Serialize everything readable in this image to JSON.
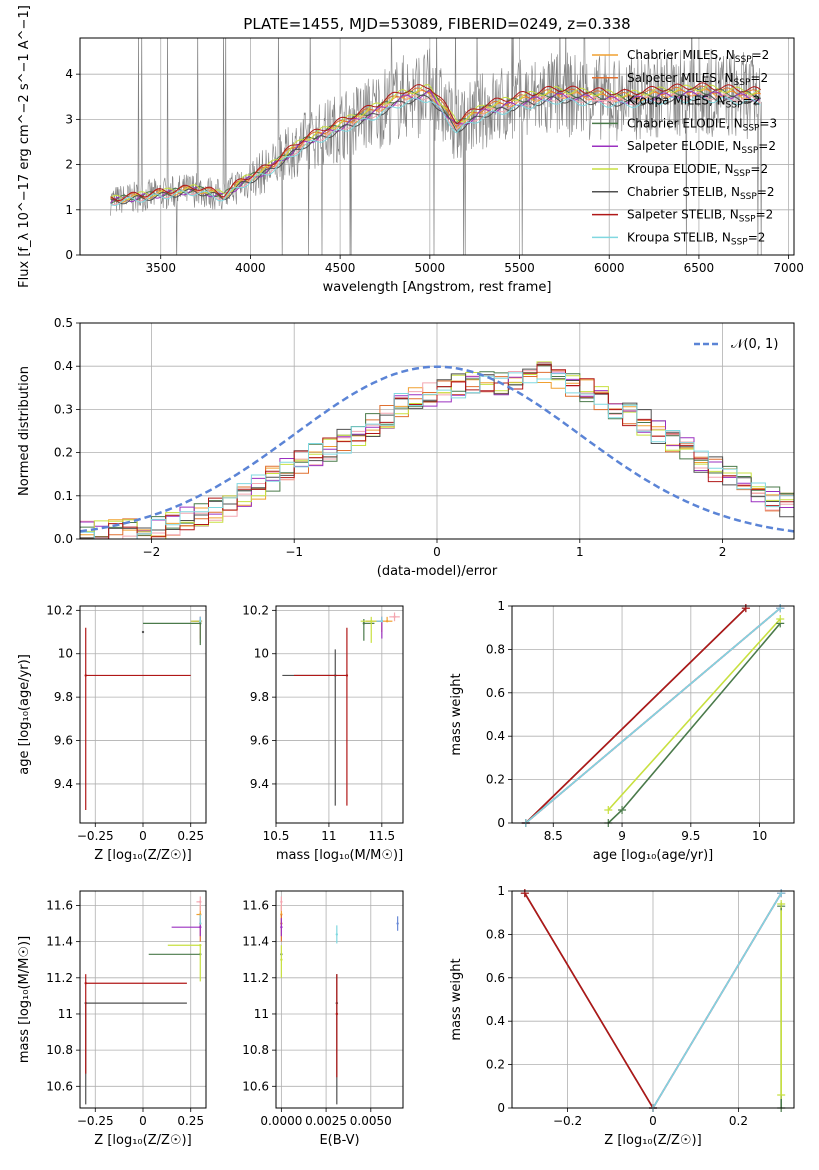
{
  "figure_title": "PLATE=1455, MJD=53089, FIBERID=0249, z=0.338",
  "colors": {
    "chabrier_miles": "#f0a030",
    "salpeter_miles": "#e07030",
    "kroupa_miles": "#f4a6b0",
    "chabrier_elodie": "#4a7a4a",
    "salpeter_elodie": "#9b30c0",
    "kroupa_elodie": "#c8e040",
    "chabrier_stelib": "#505050",
    "salpeter_stelib": "#b01818",
    "kroupa_stelib": "#80d8e0",
    "data": "#808080",
    "normal": "#5b84d6"
  },
  "legend": {
    "spectrum": [
      {
        "model": "Chabrier MILES",
        "n": "2",
        "color": "#f0a030"
      },
      {
        "model": "Salpeter MILES",
        "n": "2",
        "color": "#e07030"
      },
      {
        "model": "Kroupa MILES",
        "n": "2",
        "color": "#f4a6b0"
      },
      {
        "model": "Chabrier ELODIE",
        "n": "3",
        "color": "#4a7a4a"
      },
      {
        "model": "Salpeter ELODIE",
        "n": "2",
        "color": "#9b30c0"
      },
      {
        "model": "Kroupa ELODIE",
        "n": "2",
        "color": "#c8e040"
      },
      {
        "model": "Chabrier STELIB",
        "n": "2",
        "color": "#505050"
      },
      {
        "model": "Salpeter STELIB",
        "n": "2",
        "color": "#b01818"
      },
      {
        "model": "Kroupa STELIB",
        "n": "2",
        "color": "#80d8e0"
      }
    ],
    "residual": "𝒩(0, 1)"
  },
  "chart_data": [
    {
      "id": "spectrum",
      "type": "line",
      "xlabel": "wavelength [Angstrom, rest frame]",
      "ylabel": "Flux [f_λ 10^−17 erg cm^−2 s^−1 A^−1]",
      "xlim": [
        3050,
        7030
      ],
      "ylim": [
        0,
        4.8
      ],
      "grid": true,
      "xticks": [
        3500,
        4000,
        4500,
        5000,
        5500,
        6000,
        6500,
        7000
      ],
      "yticks": [
        0,
        1,
        2,
        3,
        4
      ],
      "data_range": [
        3220,
        6850
      ],
      "model_continuum": [
        [
          3220,
          1.2
        ],
        [
          3500,
          1.35
        ],
        [
          3700,
          1.45
        ],
        [
          3850,
          1.3
        ],
        [
          3950,
          1.6
        ],
        [
          4100,
          1.9
        ],
        [
          4300,
          2.5
        ],
        [
          4500,
          2.85
        ],
        [
          4700,
          3.2
        ],
        [
          4850,
          3.5
        ],
        [
          5000,
          3.6
        ],
        [
          5150,
          2.85
        ],
        [
          5300,
          3.2
        ],
        [
          5500,
          3.4
        ],
        [
          5700,
          3.55
        ],
        [
          5900,
          3.5
        ],
        [
          6100,
          3.45
        ],
        [
          6300,
          3.55
        ],
        [
          6500,
          3.6
        ],
        [
          6850,
          3.5
        ]
      ],
      "model_scale": [
        1.0,
        1.02,
        0.98,
        1.01,
        0.99,
        1.03,
        0.97,
        1.04,
        0.96
      ]
    },
    {
      "id": "residual",
      "type": "histogram",
      "xlabel": "(data-model)/error",
      "ylabel": "Normed distribution",
      "xlim": [
        -2.5,
        2.5
      ],
      "ylim": [
        0,
        0.5
      ],
      "grid": true,
      "xticks": [
        -2,
        -1,
        0,
        1,
        2
      ],
      "yticks": [
        0.0,
        0.1,
        0.2,
        0.3,
        0.4,
        0.5
      ],
      "bin_width": 0.1,
      "histogram_envelope": [
        [
          -2.5,
          0.01
        ],
        [
          -2.0,
          0.02
        ],
        [
          -1.5,
          0.07
        ],
        [
          -1.0,
          0.17
        ],
        [
          -0.5,
          0.25
        ],
        [
          -0.2,
          0.32
        ],
        [
          0.0,
          0.34
        ],
        [
          0.3,
          0.37
        ],
        [
          0.5,
          0.36
        ],
        [
          0.7,
          0.4
        ],
        [
          1.0,
          0.35
        ],
        [
          1.3,
          0.3
        ],
        [
          1.6,
          0.24
        ],
        [
          2.0,
          0.15
        ],
        [
          2.5,
          0.07
        ]
      ],
      "normal_curve": {
        "mean": 0,
        "sigma": 1
      }
    },
    {
      "id": "age_vs_Z",
      "type": "scatter",
      "xlabel": "Z [log₁₀(Z/Z☉)]",
      "ylabel": "age  [log₁₀(age/yr)]",
      "xlim": [
        -0.33,
        0.33
      ],
      "ylim": [
        9.22,
        10.22
      ],
      "xticks": [
        -0.25,
        0.0,
        0.25
      ],
      "yticks": [
        9.4,
        9.6,
        9.8,
        10.0,
        10.2
      ],
      "points": [
        {
          "x": 0.3,
          "y": 10.15,
          "xerr": [
            0.03,
            0.01
          ],
          "yerr": [
            0.0,
            0.02
          ],
          "color": "#f0a030"
        },
        {
          "x": 0.3,
          "y": 10.15,
          "xerr": [
            0.04,
            0.0
          ],
          "yerr": [
            0.08,
            0.02
          ],
          "color": "#e07030"
        },
        {
          "x": 0.3,
          "y": 10.15,
          "xerr": [
            0.0,
            0.0
          ],
          "yerr": [
            0.1,
            0.02
          ],
          "color": "#f4a6b0"
        },
        {
          "x": 0.3,
          "y": 10.14,
          "xerr": [
            0.3,
            0.0
          ],
          "yerr": [
            0.1,
            0.02
          ],
          "color": "#4a7a4a"
        },
        {
          "x": 0.3,
          "y": 10.15,
          "xerr": [
            0.05,
            0.0
          ],
          "yerr": [
            0.0,
            0.02
          ],
          "color": "#9b30c0"
        },
        {
          "x": 0.3,
          "y": 10.15,
          "xerr": [
            0.05,
            0.0
          ],
          "yerr": [
            0.0,
            0.0
          ],
          "color": "#c8e040"
        },
        {
          "x": 0.0,
          "y": 10.1,
          "xerr": [
            0.0,
            0.0
          ],
          "yerr": [
            0.0,
            0.0
          ],
          "color": "#505050"
        },
        {
          "x": -0.3,
          "y": 9.9,
          "xerr": [
            0.0,
            0.55
          ],
          "yerr": [
            0.62,
            0.22
          ],
          "color": "#b01818"
        },
        {
          "x": 0.3,
          "y": 10.15,
          "xerr": [
            0.0,
            0.0
          ],
          "yerr": [
            0.0,
            0.02
          ],
          "color": "#80d8e0"
        }
      ]
    },
    {
      "id": "age_vs_mass",
      "type": "scatter",
      "xlabel": "mass [log₁₀(M/M☉)]",
      "ylabel": "",
      "xlim": [
        10.5,
        11.7
      ],
      "ylim": [
        9.22,
        10.22
      ],
      "xticks": [
        10.5,
        11.0,
        11.5
      ],
      "yticks": [
        9.4,
        9.6,
        9.8,
        10.0,
        10.2
      ],
      "points": [
        {
          "x": 11.55,
          "y": 10.15,
          "xerr": [
            0.05,
            0.05
          ],
          "yerr": [
            0.0,
            0.02
          ],
          "color": "#f0a030"
        },
        {
          "x": 11.5,
          "y": 10.15,
          "xerr": [
            0.15,
            0.0
          ],
          "yerr": [
            0.05,
            0.02
          ],
          "color": "#e07030"
        },
        {
          "x": 11.62,
          "y": 10.17,
          "xerr": [
            0.05,
            0.05
          ],
          "yerr": [
            0.02,
            0.02
          ],
          "color": "#f4a6b0"
        },
        {
          "x": 11.33,
          "y": 10.14,
          "xerr": [
            0.0,
            0.1
          ],
          "yerr": [
            0.08,
            0.02
          ],
          "color": "#4a7a4a"
        },
        {
          "x": 11.5,
          "y": 10.15,
          "xerr": [
            0.05,
            0.0
          ],
          "yerr": [
            0.08,
            0.02
          ],
          "color": "#9b30c0"
        },
        {
          "x": 11.4,
          "y": 10.15,
          "xerr": [
            0.1,
            0.05
          ],
          "yerr": [
            0.1,
            0.02
          ],
          "color": "#c8e040"
        },
        {
          "x": 11.06,
          "y": 9.9,
          "xerr": [
            0.5,
            0.0
          ],
          "yerr": [
            0.6,
            0.12
          ],
          "color": "#505050"
        },
        {
          "x": 11.17,
          "y": 9.9,
          "xerr": [
            0.5,
            0.0
          ],
          "yerr": [
            0.6,
            0.22
          ],
          "color": "#b01818"
        },
        {
          "x": 11.5,
          "y": 10.15,
          "xerr": [
            0.05,
            0.0
          ],
          "yerr": [
            0.0,
            0.02
          ],
          "color": "#80d8e0"
        }
      ]
    },
    {
      "id": "mass_weight_vs_age",
      "type": "line",
      "xlabel": "age  [log₁₀(age/yr)]",
      "ylabel": "mass weight",
      "xlim": [
        8.2,
        10.25
      ],
      "ylim": [
        0,
        1.0
      ],
      "xticks": [
        8.5,
        9.0,
        9.5,
        10.0
      ],
      "yticks": [
        0.0,
        0.2,
        0.4,
        0.6,
        0.8,
        1.0
      ],
      "series": [
        {
          "color": "#f0a030",
          "x": [
            8.3,
            10.15
          ],
          "y": [
            0.0,
            0.99
          ]
        },
        {
          "color": "#e07030",
          "x": [
            8.3,
            10.15
          ],
          "y": [
            0.0,
            0.99
          ]
        },
        {
          "color": "#f4a6b0",
          "x": [
            8.3,
            10.15
          ],
          "y": [
            0.0,
            0.99
          ]
        },
        {
          "color": "#4a7a4a",
          "x": [
            8.9,
            9.0,
            10.15
          ],
          "y": [
            0.0,
            0.06,
            0.92
          ]
        },
        {
          "color": "#9b30c0",
          "x": [
            8.3,
            10.15
          ],
          "y": [
            0.0,
            0.99
          ]
        },
        {
          "color": "#c8e040",
          "x": [
            8.9,
            10.15
          ],
          "y": [
            0.06,
            0.94
          ]
        },
        {
          "color": "#505050",
          "x": [
            8.3,
            9.9
          ],
          "y": [
            0.0,
            0.99
          ]
        },
        {
          "color": "#b01818",
          "x": [
            8.3,
            9.9
          ],
          "y": [
            0.0,
            0.99
          ]
        },
        {
          "color": "#80d8e0",
          "x": [
            8.3,
            10.15
          ],
          "y": [
            0.0,
            0.99
          ]
        }
      ]
    },
    {
      "id": "mass_vs_Z",
      "type": "scatter",
      "xlabel": "Z [log₁₀(Z/Z☉)]",
      "ylabel": "mass [log₁₀(M/M☉)]",
      "xlim": [
        -0.33,
        0.33
      ],
      "ylim": [
        10.48,
        11.68
      ],
      "xticks": [
        -0.25,
        0.0,
        0.25
      ],
      "yticks": [
        10.6,
        10.8,
        11.0,
        11.2,
        11.4,
        11.6
      ],
      "points": [
        {
          "x": 0.3,
          "y": 11.55,
          "xerr": [
            0.02,
            0.0
          ],
          "yerr": [
            0.05,
            0.05
          ],
          "color": "#f0a030"
        },
        {
          "x": 0.3,
          "y": 11.5,
          "xerr": [
            0.0,
            0.0
          ],
          "yerr": [
            0.1,
            0.05
          ],
          "color": "#e07030"
        },
        {
          "x": 0.3,
          "y": 11.62,
          "xerr": [
            0.02,
            0.0
          ],
          "yerr": [
            0.05,
            0.03
          ],
          "color": "#f4a6b0"
        },
        {
          "x": 0.3,
          "y": 11.33,
          "xerr": [
            0.27,
            0.0
          ],
          "yerr": [
            0.0,
            0.0
          ],
          "color": "#4a7a4a"
        },
        {
          "x": 0.3,
          "y": 11.48,
          "xerr": [
            0.15,
            0.0
          ],
          "yerr": [
            0.05,
            0.05
          ],
          "color": "#9b30c0"
        },
        {
          "x": 0.3,
          "y": 11.38,
          "xerr": [
            0.17,
            0.0
          ],
          "yerr": [
            0.2,
            0.0
          ],
          "color": "#c8e040"
        },
        {
          "x": -0.3,
          "y": 11.06,
          "xerr": [
            0.0,
            0.53
          ],
          "yerr": [
            0.56,
            0.0
          ],
          "color": "#505050"
        },
        {
          "x": -0.3,
          "y": 11.17,
          "xerr": [
            0.0,
            0.53
          ],
          "yerr": [
            0.5,
            0.05
          ],
          "color": "#b01818"
        },
        {
          "x": 0.3,
          "y": 11.5,
          "xerr": [
            0.0,
            0.0
          ],
          "yerr": [
            0.0,
            0.05
          ],
          "color": "#80d8e0"
        }
      ]
    },
    {
      "id": "mass_vs_EBV",
      "type": "scatter",
      "xlabel": "E(B-V)",
      "ylabel": "",
      "xlim": [
        -0.0003,
        0.0068
      ],
      "ylim": [
        10.48,
        11.68
      ],
      "xticks": [
        0.0,
        0.0025,
        0.005
      ],
      "xtick_labels": [
        "0.0000",
        "0.0025",
        "0.0050"
      ],
      "yticks": [
        10.6,
        10.8,
        11.0,
        11.2,
        11.4,
        11.6
      ],
      "points": [
        {
          "x": 0.0,
          "y": 11.55,
          "yerr": [
            0.05,
            0.05
          ],
          "color": "#f0a030"
        },
        {
          "x": 0.0,
          "y": 11.5,
          "yerr": [
            0.1,
            0.05
          ],
          "color": "#e07030"
        },
        {
          "x": 0.0,
          "y": 11.62,
          "yerr": [
            0.05,
            0.03
          ],
          "color": "#f4a6b0"
        },
        {
          "x": 0.0,
          "y": 11.33,
          "yerr": [
            0.0,
            0.0
          ],
          "color": "#4a7a4a"
        },
        {
          "x": 0.0,
          "y": 11.48,
          "yerr": [
            0.05,
            0.05
          ],
          "color": "#9b30c0"
        },
        {
          "x": 0.0,
          "y": 11.3,
          "yerr": [
            0.1,
            0.08
          ],
          "color": "#c8e040"
        },
        {
          "x": 0.0031,
          "y": 11.06,
          "yerr": [
            0.56,
            0.16
          ],
          "color": "#505050"
        },
        {
          "x": 0.0031,
          "y": 11.0,
          "yerr": [
            0.35,
            0.22
          ],
          "color": "#b01818"
        },
        {
          "x": 0.0031,
          "y": 11.44,
          "yerr": [
            0.05,
            0.05
          ],
          "color": "#80d8e0"
        },
        {
          "x": 0.0065,
          "y": 11.5,
          "yerr": [
            0.04,
            0.04
          ],
          "color": "#6a8ad6"
        }
      ]
    },
    {
      "id": "mass_weight_vs_Z",
      "type": "line",
      "xlabel": "Z [log₁₀(Z/Z☉)]",
      "ylabel": "mass weight",
      "xlim": [
        -0.33,
        0.33
      ],
      "ylim": [
        0,
        1.0
      ],
      "xticks": [
        -0.2,
        0.0,
        0.2
      ],
      "yticks": [
        0.0,
        0.2,
        0.4,
        0.6,
        0.8,
        1.0
      ],
      "series": [
        {
          "color": "#f0a030",
          "x": [
            0.0,
            0.3
          ],
          "y": [
            0.0,
            0.99
          ]
        },
        {
          "color": "#e07030",
          "x": [
            0.0,
            0.3
          ],
          "y": [
            0.0,
            0.99
          ]
        },
        {
          "color": "#f4a6b0",
          "x": [
            0.0,
            0.3
          ],
          "y": [
            0.0,
            0.99
          ]
        },
        {
          "color": "#4a7a4a",
          "x": [
            0.3,
            0.3
          ],
          "y": [
            0.0,
            0.93
          ]
        },
        {
          "color": "#9b30c0",
          "x": [
            0.0,
            0.3
          ],
          "y": [
            0.0,
            0.99
          ]
        },
        {
          "color": "#c8e040",
          "x": [
            0.3,
            0.3
          ],
          "y": [
            0.06,
            0.94
          ]
        },
        {
          "color": "#505050",
          "x": [
            -0.3,
            0.0
          ],
          "y": [
            0.99,
            0.0
          ]
        },
        {
          "color": "#b01818",
          "x": [
            -0.3,
            0.0
          ],
          "y": [
            0.99,
            0.0
          ]
        },
        {
          "color": "#80d8e0",
          "x": [
            0.0,
            0.3
          ],
          "y": [
            0.0,
            0.99
          ]
        }
      ]
    }
  ]
}
